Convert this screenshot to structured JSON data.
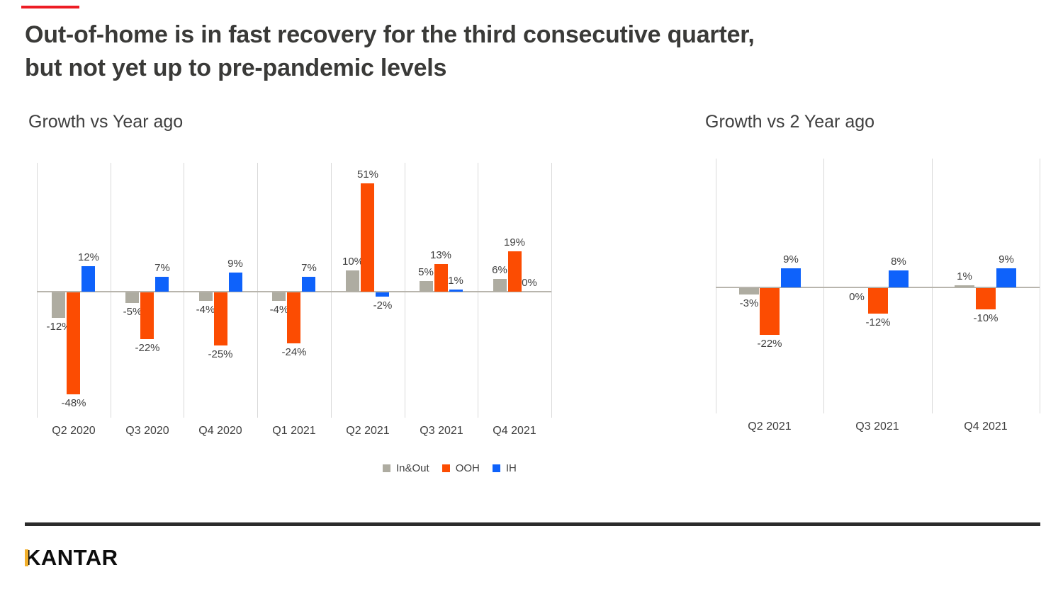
{
  "title": {
    "line1": "Out-of-home is in fast recovery for the third consecutive quarter,",
    "line2": "but not yet up to pre-pandemic levels"
  },
  "accent_line": {
    "color": "#ed1c24"
  },
  "chart_data": [
    {
      "type": "bar",
      "title": "Growth vs Year ago",
      "categories": [
        "Q2 2020",
        "Q3 2020",
        "Q4 2020",
        "Q1 2021",
        "Q2 2021",
        "Q3 2021",
        "Q4 2021"
      ],
      "series": [
        {
          "name": "In&Out",
          "color": "#aeaca1",
          "values": [
            -12,
            -5,
            -4,
            -4,
            10,
            5,
            6
          ]
        },
        {
          "name": "OOH",
          "color": "#fc4c02",
          "values": [
            -48,
            -22,
            -25,
            -24,
            51,
            13,
            19
          ]
        },
        {
          "name": "IH",
          "color": "#0e62fb",
          "values": [
            12,
            7,
            9,
            7,
            -2,
            1,
            0
          ]
        }
      ],
      "value_suffix": "%",
      "ylim": [
        -60,
        60
      ],
      "grid": "vertical-gridlines-only",
      "legend_position": "bottom-center",
      "zero_label_side": "above"
    },
    {
      "type": "bar",
      "title": "Growth vs 2 Year ago",
      "categories": [
        "Q2 2021",
        "Q3 2021",
        "Q4 2021"
      ],
      "series": [
        {
          "name": "In&Out",
          "color": "#aeaca1",
          "values": [
            -3,
            0,
            1
          ]
        },
        {
          "name": "OOH",
          "color": "#fc4c02",
          "values": [
            -22,
            -12,
            -10
          ]
        },
        {
          "name": "IH",
          "color": "#0e62fb",
          "values": [
            9,
            8,
            9
          ]
        }
      ],
      "value_suffix": "%",
      "ylim": [
        -60,
        60
      ],
      "grid": "vertical-gridlines-only",
      "legend_position": "none",
      "zero_label_side": "below"
    }
  ],
  "footer": {
    "logo_text": "KANTAR",
    "logo_accent_color": "#f2b02c"
  }
}
